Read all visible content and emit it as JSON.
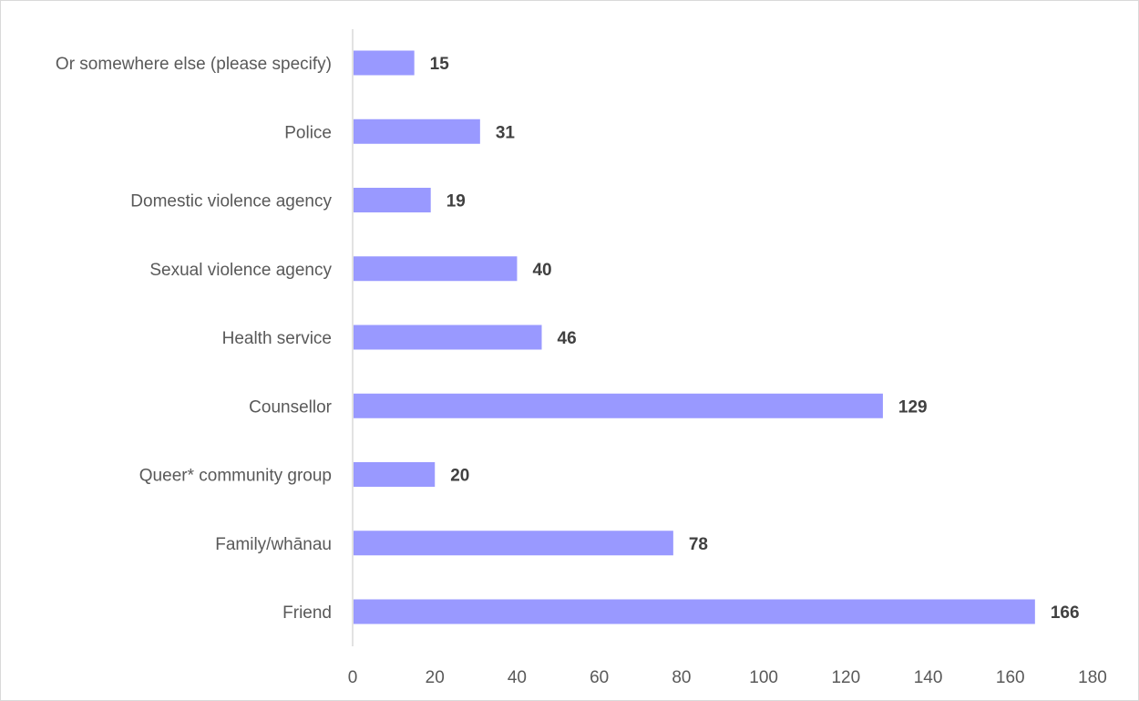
{
  "chart_data": {
    "type": "bar",
    "orientation": "horizontal",
    "categories": [
      "Friend",
      "Family/whānau",
      "Queer* community group",
      "Counsellor",
      "Health service",
      "Sexual violence agency",
      "Domestic violence agency",
      "Police",
      "Or somewhere else (please specify)"
    ],
    "values": [
      166,
      78,
      20,
      129,
      46,
      40,
      19,
      31,
      15
    ],
    "xlim": [
      0,
      180
    ],
    "ticks": [
      "0",
      "20",
      "40",
      "60",
      "80",
      "100",
      "120",
      "140",
      "160",
      "180"
    ],
    "grid": false,
    "legend": "none",
    "title": "",
    "xlabel": "",
    "ylabel": "",
    "bar_color": "#9999FF"
  }
}
